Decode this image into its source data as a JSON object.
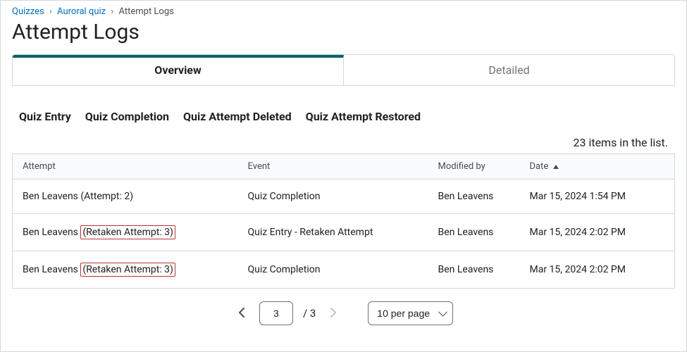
{
  "breadcrumb": {
    "items": [
      {
        "label": "Quizzes",
        "link": true
      },
      {
        "label": "Auroral quiz",
        "link": true
      },
      {
        "label": "Attempt Logs",
        "link": false
      }
    ],
    "separator": "›"
  },
  "page_title": "Attempt Logs",
  "tabs": {
    "overview": "Overview",
    "detailed": "Detailed",
    "active": "overview"
  },
  "filters": {
    "quiz_entry": "Quiz Entry",
    "quiz_completion": "Quiz Completion",
    "quiz_attempt_deleted": "Quiz Attempt Deleted",
    "quiz_attempt_restored": "Quiz Attempt Restored"
  },
  "list_count_text": "23 items in the list.",
  "table": {
    "columns": {
      "attempt": "Attempt",
      "event": "Event",
      "modified_by": "Modified by",
      "date": "Date"
    },
    "sort_column": "date",
    "sort_dir": "asc",
    "rows": [
      {
        "attempt_prefix": "Ben Leavens ",
        "attempt_suffix": "(Attempt: 2)",
        "highlight": false,
        "event": "Quiz Completion",
        "modified_by": "Ben Leavens",
        "date": "Mar 15, 2024 1:54 PM"
      },
      {
        "attempt_prefix": "Ben Leavens ",
        "attempt_suffix": "(Retaken Attempt: 3)",
        "highlight": true,
        "event": "Quiz Entry - Retaken Attempt",
        "modified_by": "Ben Leavens",
        "date": "Mar 15, 2024 2:02 PM"
      },
      {
        "attempt_prefix": "Ben Leavens ",
        "attempt_suffix": "(Retaken Attempt: 3)",
        "highlight": true,
        "event": "Quiz Completion",
        "modified_by": "Ben Leavens",
        "date": "Mar 15, 2024 2:02 PM"
      }
    ]
  },
  "pagination": {
    "current_page": "3",
    "total_pages_text": "/ 3",
    "per_page_label": "10 per page"
  },
  "colors": {
    "link": "#006fbf",
    "tab_active_border": "#006467",
    "border": "#d3d9de",
    "text": "#202122",
    "muted": "#6e7477",
    "highlight_border": "#c13030",
    "thead_bg": "#f9fbfc"
  }
}
